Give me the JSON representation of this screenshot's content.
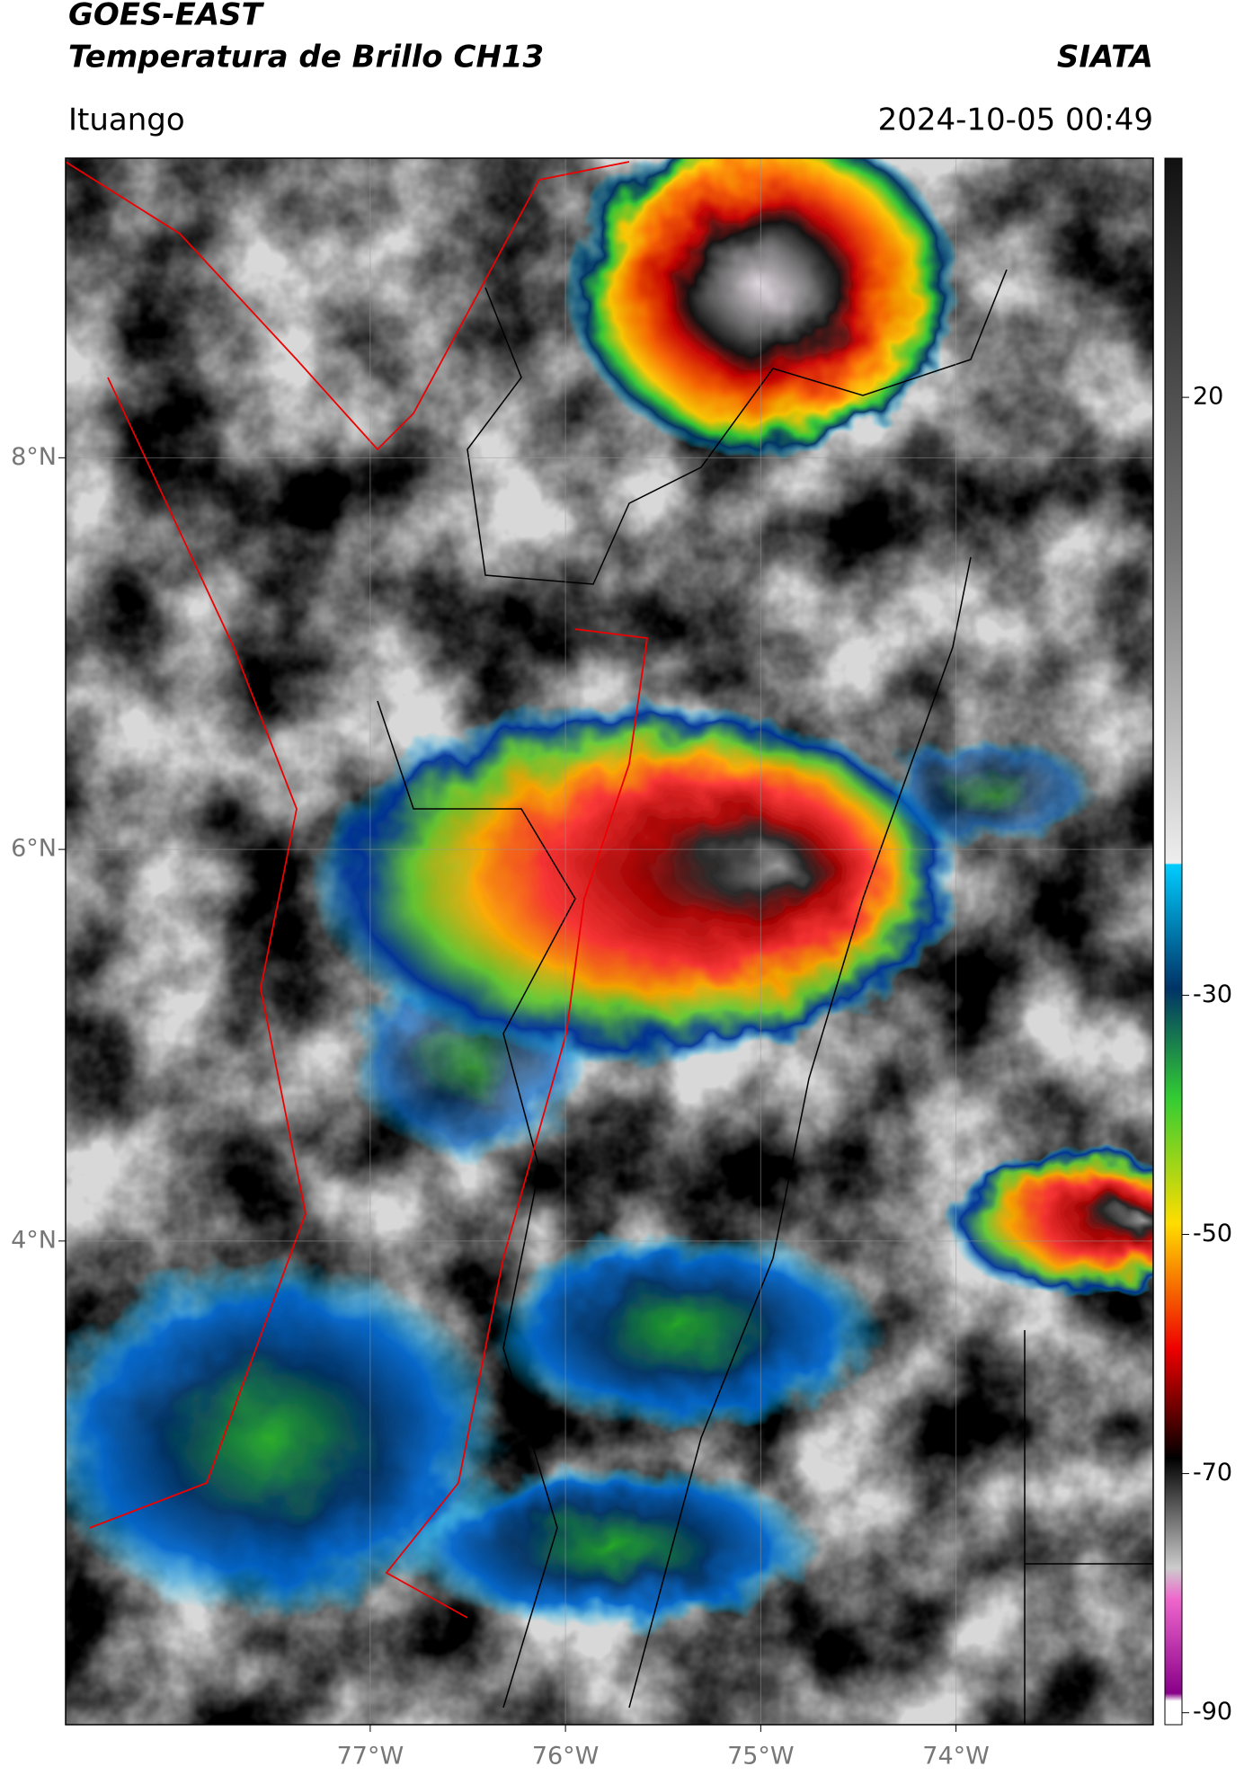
{
  "header": {
    "title": "GOES-EAST",
    "subtitle": "Temperatura de Brillo CH13",
    "org": "SIATA",
    "location": "Ituango",
    "datetime": "2024-10-05 00:49"
  },
  "map": {
    "xlim": [
      -78.56,
      -72.99
    ],
    "ylim": [
      1.53,
      9.53
    ],
    "xticks": [
      {
        "value": -77,
        "label": "77°W"
      },
      {
        "value": -76,
        "label": "76°W"
      },
      {
        "value": -75,
        "label": "75°W"
      },
      {
        "value": -74,
        "label": "74°W"
      }
    ],
    "yticks": [
      {
        "value": 8,
        "label": "8°N"
      },
      {
        "value": 6,
        "label": "6°N"
      },
      {
        "value": 4,
        "label": "4°N"
      }
    ]
  },
  "colorbar": {
    "lim": [
      -91,
      40
    ],
    "ticks": [
      20,
      -30,
      -50,
      -70,
      -90
    ]
  }
}
